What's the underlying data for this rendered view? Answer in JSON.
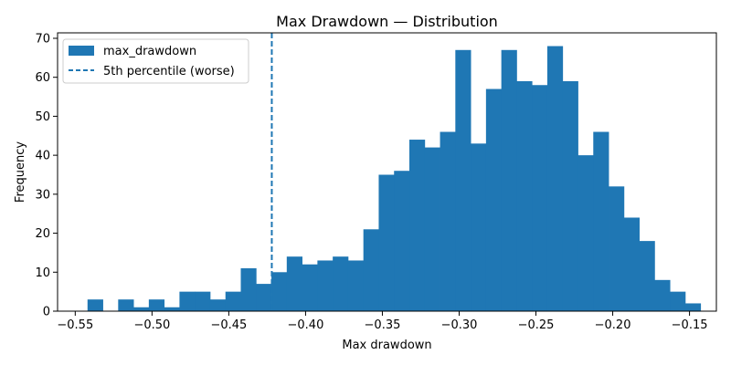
{
  "chart_data": {
    "type": "bar",
    "title": "Max Drawdown — Distribution",
    "xlabel": "Max drawdown",
    "ylabel": "Frequency",
    "xlim": [
      -0.5615,
      -0.1325
    ],
    "ylim": [
      0,
      71.4
    ],
    "xticks": [
      -0.55,
      -0.5,
      -0.45,
      -0.4,
      -0.35,
      -0.3,
      -0.25,
      -0.2,
      -0.15
    ],
    "xtick_labels": [
      "−0.55",
      "−0.50",
      "−0.45",
      "−0.40",
      "−0.35",
      "−0.30",
      "−0.25",
      "−0.20",
      "−0.15"
    ],
    "yticks": [
      0,
      10,
      20,
      30,
      40,
      50,
      60,
      70
    ],
    "ytick_labels": [
      "0",
      "10",
      "20",
      "30",
      "40",
      "50",
      "60",
      "70"
    ],
    "bin_start": -0.542,
    "bin_width": 0.00998,
    "counts": [
      3,
      0,
      3,
      1,
      3,
      1,
      5,
      5,
      3,
      5,
      11,
      7,
      10,
      14,
      12,
      13,
      14,
      13,
      21,
      35,
      36,
      44,
      42,
      46,
      67,
      43,
      57,
      67,
      59,
      58,
      68,
      59,
      40,
      46,
      32,
      24,
      18,
      8,
      5,
      2
    ],
    "series": [
      {
        "name": "max_drawdown",
        "kind": "histogram",
        "color": "#1f77b4"
      },
      {
        "name": "5th percentile (worse)",
        "kind": "vline",
        "x": -0.422,
        "color": "#1f77b4",
        "style": "dashed"
      }
    ],
    "legend_position": "top-left",
    "grid": false
  }
}
